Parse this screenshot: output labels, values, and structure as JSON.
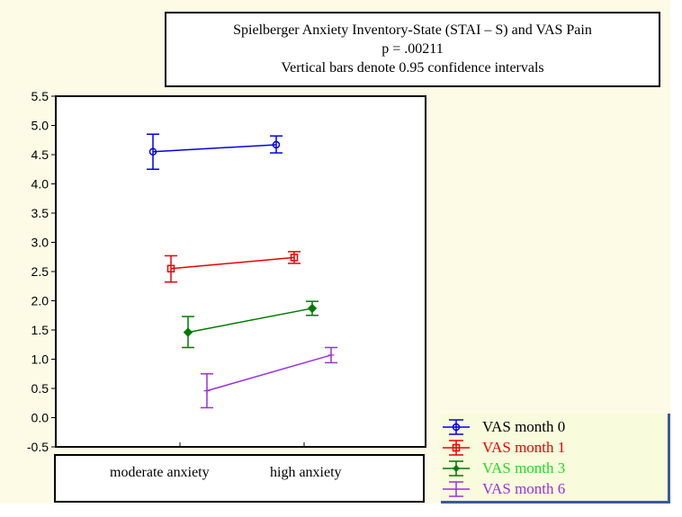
{
  "chart_data": {
    "type": "line",
    "title_lines": [
      "Spielberger Anxiety Inventory-State (STAI – S)  and VAS Pain",
      "p = .00211",
      "Vertical bars denote 0.95 confidence intervals"
    ],
    "categories": [
      "moderate anxiety",
      "high anxiety"
    ],
    "ylim": [
      -0.5,
      5.5
    ],
    "yticks": [
      "5.5",
      "5.0",
      "4.5",
      "4.0",
      "3.5",
      "3.0",
      "2.5",
      "2.0",
      "1.5",
      "1.0",
      "0.5",
      "0.0",
      "-0.5"
    ],
    "series": [
      {
        "name": "VAS month 0",
        "color": "#0000ee",
        "marker": "circle",
        "values": [
          4.55,
          4.67
        ],
        "ci_low": [
          4.25,
          4.53
        ],
        "ci_high": [
          4.85,
          4.82
        ]
      },
      {
        "name": "VAS month 1",
        "color": "#ee0000",
        "marker": "square",
        "values": [
          2.55,
          2.74
        ],
        "ci_low": [
          2.32,
          2.64
        ],
        "ci_high": [
          2.77,
          2.84
        ]
      },
      {
        "name": "VAS month 3",
        "color": "#007a00",
        "marker": "diamond",
        "values": [
          1.46,
          1.87
        ],
        "ci_low": [
          1.2,
          1.75
        ],
        "ci_high": [
          1.73,
          1.99
        ]
      },
      {
        "name": "VAS month 6",
        "color": "#9b30e0",
        "marker": "plus",
        "values": [
          0.46,
          1.07
        ],
        "ci_low": [
          0.17,
          0.94
        ],
        "ci_high": [
          0.75,
          1.2
        ]
      }
    ],
    "legend_text_colors": [
      "#000000",
      "#ee0000",
      "#22dd22",
      "#9b30e0"
    ],
    "legend_position": "bottom-right"
  }
}
